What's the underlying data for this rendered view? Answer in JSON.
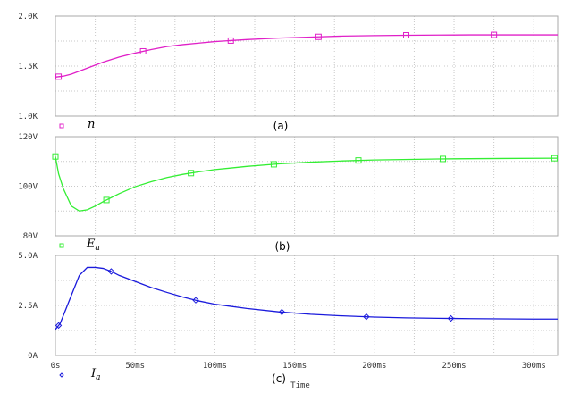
{
  "chart_data": [
    {
      "type": "line",
      "panel_label": "(a)",
      "ylim": [
        1000,
        2000
      ],
      "yticks": [
        {
          "value": 1000,
          "label": "1.0K"
        },
        {
          "value": 1500,
          "label": "1.5K"
        },
        {
          "value": 2000,
          "label": "2.0K"
        }
      ],
      "series": [
        {
          "legend_base": "n",
          "legend_sub": "",
          "color": "#e020c8",
          "marker": "square",
          "x": [
            0,
            5,
            10,
            15,
            20,
            25,
            30,
            40,
            50,
            60,
            70,
            80,
            90,
            100,
            120,
            140,
            160,
            180,
            200,
            220,
            240,
            260,
            280,
            300,
            315
          ],
          "y": [
            1390,
            1400,
            1420,
            1450,
            1480,
            1510,
            1540,
            1590,
            1630,
            1665,
            1695,
            1715,
            1730,
            1745,
            1765,
            1780,
            1790,
            1800,
            1805,
            1808,
            1810,
            1812,
            1812,
            1812,
            1812
          ],
          "marker_x": [
            2,
            55,
            110,
            165,
            220,
            275
          ]
        }
      ]
    },
    {
      "type": "line",
      "panel_label": "(b)",
      "ylim": [
        80,
        120
      ],
      "yticks": [
        {
          "value": 80,
          "label": "80V"
        },
        {
          "value": 100,
          "label": "100V"
        },
        {
          "value": 120,
          "label": "120V"
        }
      ],
      "series": [
        {
          "legend_base": "E",
          "legend_sub": "a",
          "color": "#33ee33",
          "marker": "square",
          "x": [
            0,
            2,
            5,
            10,
            15,
            20,
            25,
            30,
            40,
            50,
            60,
            70,
            80,
            90,
            100,
            120,
            140,
            160,
            180,
            200,
            240,
            280,
            315
          ],
          "y": [
            112,
            105,
            99,
            92,
            90,
            90.5,
            92,
            93.8,
            97,
            99.8,
            101.8,
            103.5,
            104.8,
            105.8,
            106.7,
            108,
            109,
            109.7,
            110.2,
            110.6,
            111,
            111.2,
            111.3
          ],
          "marker_x": [
            0,
            32,
            85,
            137,
            190,
            243,
            313
          ]
        }
      ]
    },
    {
      "type": "line",
      "panel_label": "(c)",
      "xlabel": "Time",
      "xlim": [
        0,
        315
      ],
      "xticks": [
        {
          "value": 0,
          "label": "0s"
        },
        {
          "value": 50,
          "label": "50ms"
        },
        {
          "value": 100,
          "label": "100ms"
        },
        {
          "value": 150,
          "label": "150ms"
        },
        {
          "value": 200,
          "label": "200ms"
        },
        {
          "value": 250,
          "label": "250ms"
        },
        {
          "value": 300,
          "label": "300ms"
        }
      ],
      "ylim": [
        0,
        5
      ],
      "yticks": [
        {
          "value": 0,
          "label": "0A"
        },
        {
          "value": 2.5,
          "label": "2.5A"
        },
        {
          "value": 5,
          "label": "5.0A"
        }
      ],
      "series": [
        {
          "legend_base": "I",
          "legend_sub": "a",
          "color": "#1a1adc",
          "marker": "diamond",
          "x": [
            0,
            3,
            7,
            10,
            15,
            20,
            25,
            30,
            35,
            40,
            50,
            60,
            70,
            80,
            90,
            100,
            120,
            140,
            160,
            180,
            200,
            220,
            240,
            260,
            280,
            300,
            315
          ],
          "y": [
            1.3,
            1.6,
            2.4,
            3.0,
            4.0,
            4.4,
            4.4,
            4.35,
            4.2,
            4.0,
            3.7,
            3.4,
            3.15,
            2.92,
            2.72,
            2.56,
            2.35,
            2.18,
            2.06,
            1.98,
            1.92,
            1.88,
            1.86,
            1.84,
            1.83,
            1.82,
            1.82
          ],
          "marker_x": [
            2,
            35,
            88,
            142,
            195,
            248
          ]
        }
      ]
    }
  ]
}
